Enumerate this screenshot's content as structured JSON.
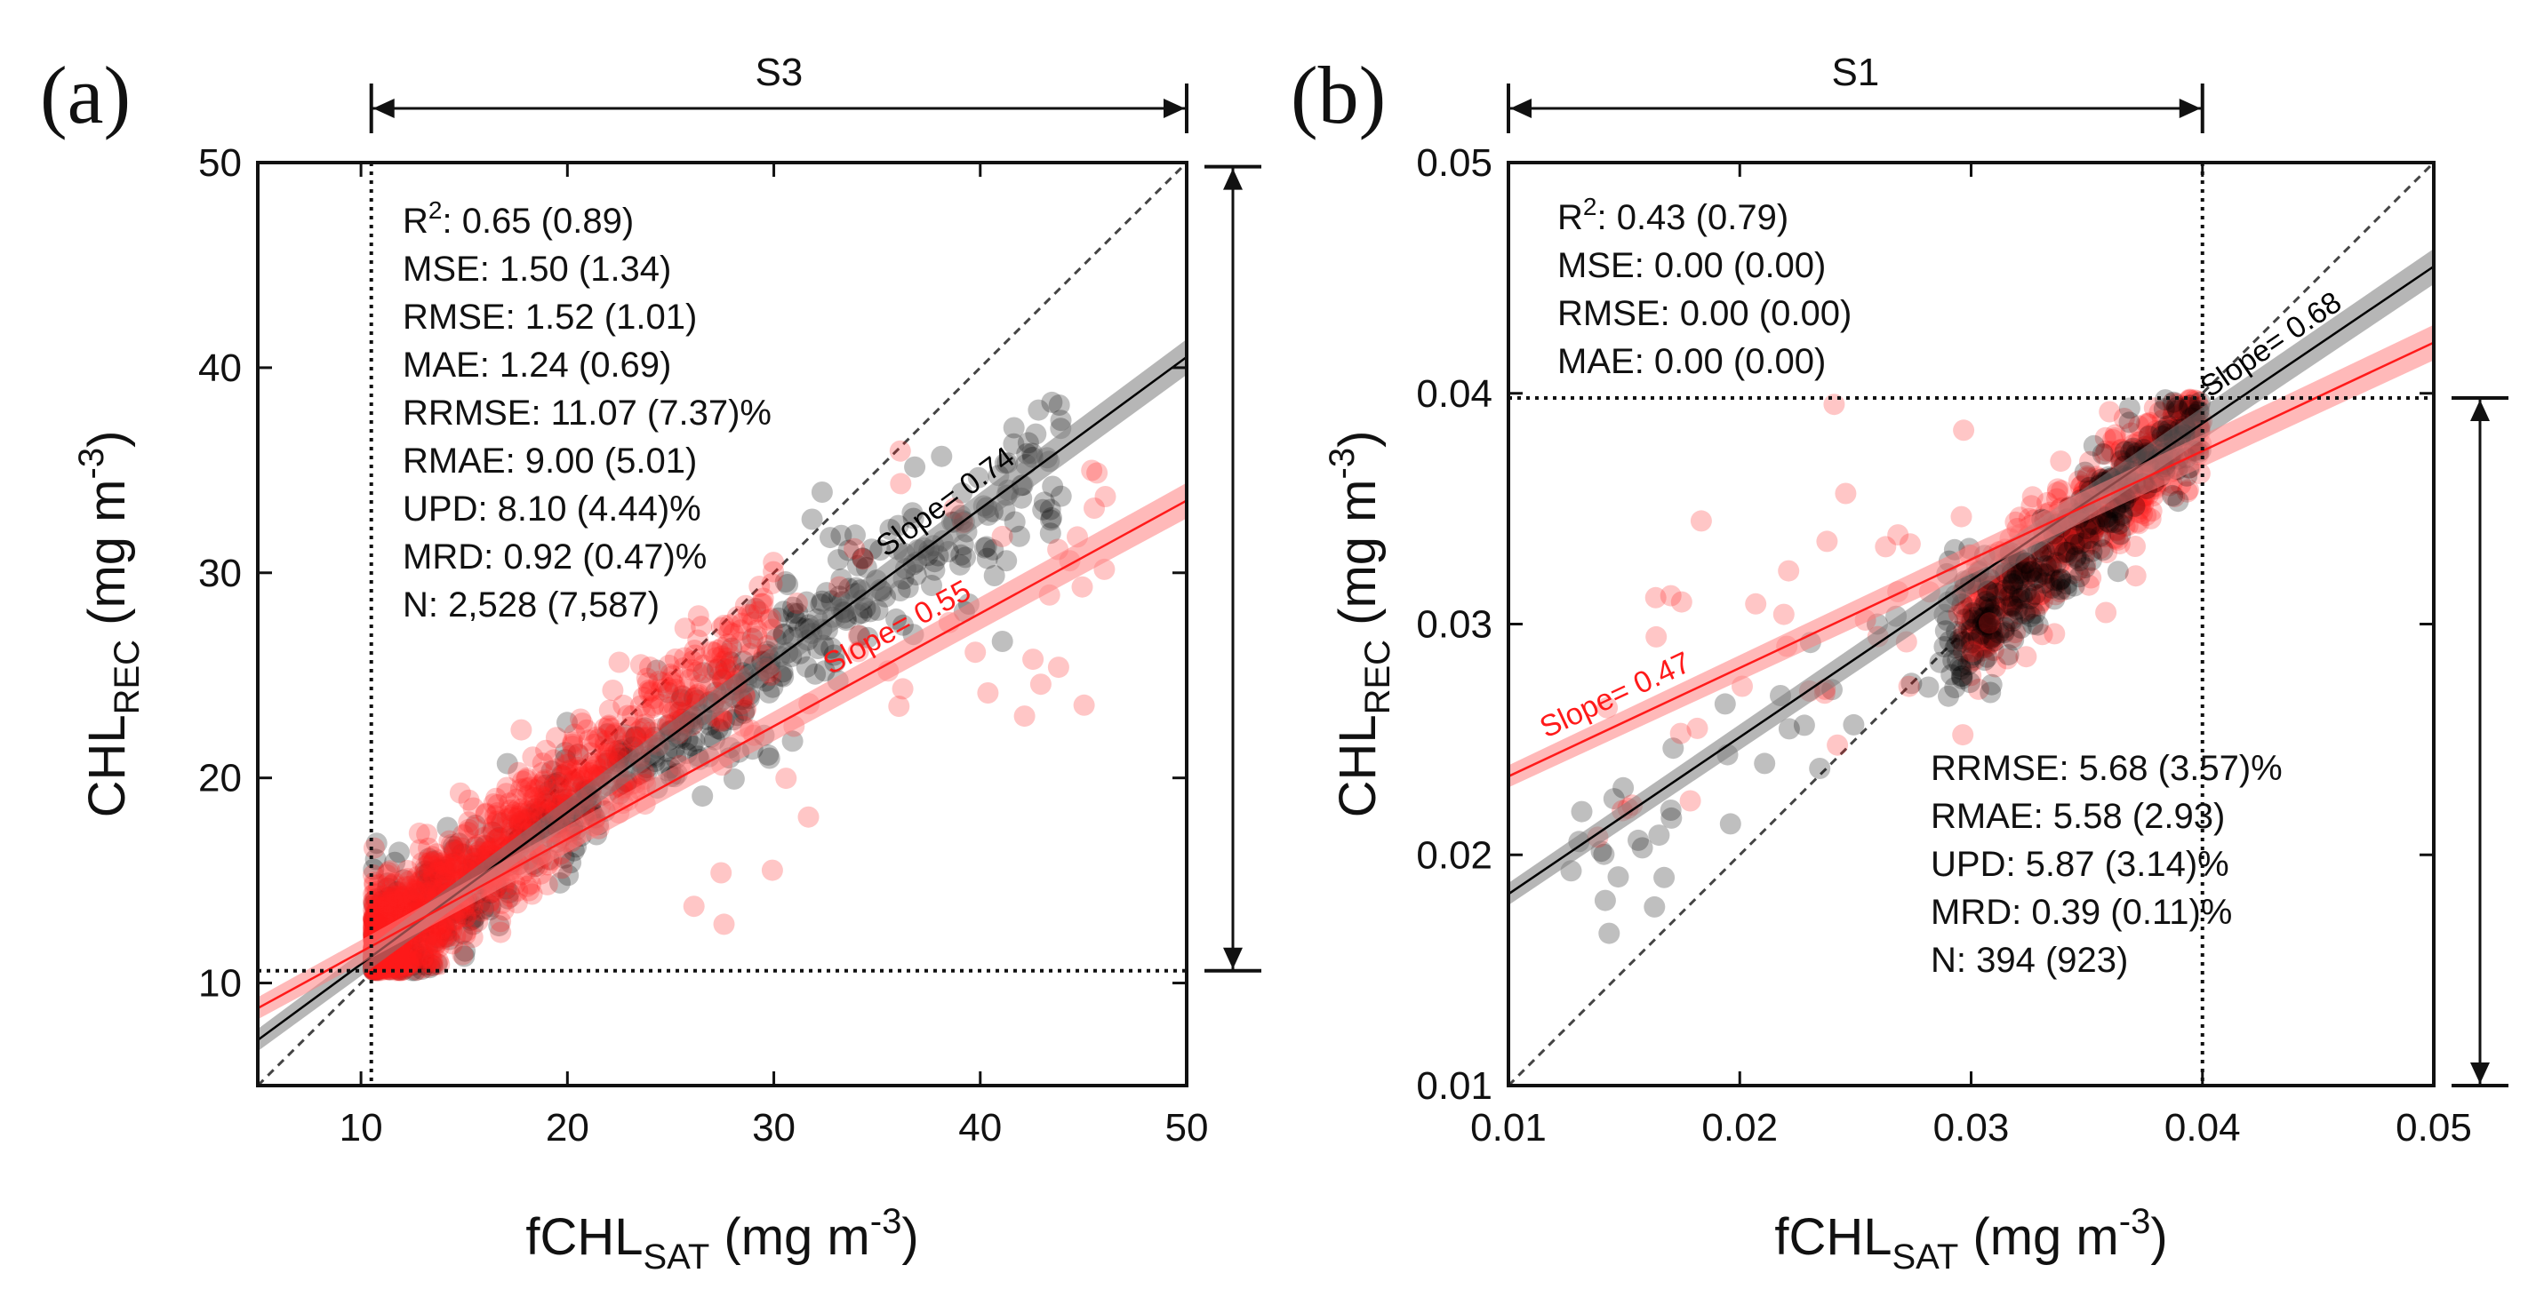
{
  "chart_data": [
    {
      "panel_label": "(a)",
      "type": "scatter",
      "range_label": "S3",
      "xlabel": {
        "main": "fCHL",
        "sub": "SAT",
        "unit": " (mg m",
        "exp": "-3",
        "close": ")"
      },
      "ylabel": {
        "main": "CHL",
        "sub": "REC",
        "unit": " (mg m",
        "exp": "-3",
        "close": ")"
      },
      "xlim": [
        5,
        50
      ],
      "ylim": [
        5,
        50
      ],
      "xticks": [
        10,
        20,
        30,
        40,
        50
      ],
      "yticks": [
        10,
        20,
        30,
        40,
        50
      ],
      "tick_decimals": 0,
      "range_x": [
        10.5,
        50
      ],
      "range_y": [
        10.6,
        49.8
      ],
      "stats": [
        {
          "label": "R",
          "sup": "2",
          "value": ": 0.65 (0.89)"
        },
        {
          "label": "MSE",
          "sup": "",
          "value": ": 1.50 (1.34)"
        },
        {
          "label": "RMSE",
          "sup": "",
          "value": ": 1.52 (1.01)"
        },
        {
          "label": "MAE",
          "sup": "",
          "value": ": 1.24 (0.69)"
        },
        {
          "label": "RRMSE",
          "sup": "",
          "value": ": 11.07 (7.37)%"
        },
        {
          "label": "RMAE",
          "sup": "",
          "value": ": 9.00 (5.01)"
        },
        {
          "label": "UPD",
          "sup": "",
          "value": ": 8.10 (4.44)%"
        },
        {
          "label": "MRD",
          "sup": "",
          "value": ": 0.92 (0.47)%"
        },
        {
          "label": "N",
          "sup": "",
          "value": ": 2,528 (7,587)"
        }
      ],
      "fits": [
        {
          "name": "black",
          "color": "#000000",
          "band": "#7a7a7a",
          "intercept": 3.52,
          "slope": 0.74,
          "label": "Slope= 0.74",
          "label_x": 38.6
        },
        {
          "name": "red",
          "color": "#ff1a1a",
          "band": "#ff8080",
          "intercept": 6.02,
          "slope": 0.55,
          "label": "Slope= 0.55",
          "label_x": 36.2
        }
      ],
      "clusters": [
        {
          "color": "#000000",
          "seed": 11,
          "n": 620,
          "xmin": 10.6,
          "xmax": 44,
          "fit": [
            3.52,
            0.74
          ],
          "sd": 1.5,
          "skew": 2.0
        },
        {
          "color": "#000000",
          "seed": 12,
          "n": 40,
          "xmin": 28,
          "xmax": 44,
          "fit": [
            3.52,
            0.74
          ],
          "sd": 4.0,
          "skew": 1.0
        },
        {
          "color": "#ff1a1a",
          "seed": 21,
          "n": 1200,
          "xmin": 10.6,
          "xmax": 30,
          "fit": [
            2.4,
            0.84
          ],
          "sd": 1.6,
          "skew": 2.6
        },
        {
          "color": "#ff1a1a",
          "seed": 22,
          "n": 45,
          "xmin": 26,
          "xmax": 47,
          "fit": [
            6.02,
            0.55
          ],
          "sd": 4.5,
          "skew": 1.0
        }
      ]
    },
    {
      "panel_label": "(b)",
      "type": "scatter",
      "range_label": "S1",
      "xlabel": {
        "main": "fCHL",
        "sub": "SAT",
        "unit": " (mg m",
        "exp": "-3",
        "close": ")"
      },
      "ylabel": {
        "main": "CHL",
        "sub": "REC",
        "unit": " (mg m",
        "exp": "-3",
        "close": ")"
      },
      "xlim": [
        0.01,
        0.05
      ],
      "ylim": [
        0.01,
        0.05
      ],
      "xticks": [
        0.01,
        0.02,
        0.03,
        0.04,
        0.05
      ],
      "yticks": [
        0.01,
        0.02,
        0.03,
        0.04,
        0.05
      ],
      "tick_decimals": 2,
      "range_x": [
        0.01,
        0.04
      ],
      "range_y": [
        0.01,
        0.0398
      ],
      "stats": [
        {
          "label": "R",
          "sup": "2",
          "value": ": 0.43 (0.79)"
        },
        {
          "label": "MSE",
          "sup": "",
          "value": ": 0.00 (0.00)"
        },
        {
          "label": "RMSE",
          "sup": "",
          "value": ": 0.00 (0.00)"
        },
        {
          "label": "MAE",
          "sup": "",
          "value": ": 0.00 (0.00)"
        }
      ],
      "stats2": [
        {
          "label": "RRMSE",
          "value": ": 5.68 (3.57)%"
        },
        {
          "label": "RMAE",
          "value": ": 5.58 (2.93)"
        },
        {
          "label": "UPD",
          "value": ": 5.87 (3.14)%"
        },
        {
          "label": "MRD",
          "value": ": 0.39 (0.11)%"
        },
        {
          "label": "N",
          "value": ": 394 (923)"
        }
      ],
      "fits": [
        {
          "name": "black",
          "color": "#000000",
          "band": "#7a7a7a",
          "intercept": 0.0115,
          "slope": 0.68,
          "label": "Slope= 0.68",
          "label_x": 0.0432
        },
        {
          "name": "red",
          "color": "#ff1a1a",
          "band": "#ff8080",
          "intercept": 0.0187,
          "slope": 0.47,
          "label": "Slope= 0.47",
          "label_x": 0.0148
        }
      ],
      "clusters": [
        {
          "color": "#ff1a1a",
          "seed": 31,
          "n": 520,
          "xmin": 0.0295,
          "xmax": 0.04,
          "fit": [
            0.003,
            0.9
          ],
          "sd": 0.0013,
          "skew": 0
        },
        {
          "color": "#000000",
          "seed": 32,
          "n": 260,
          "xmin": 0.029,
          "xmax": 0.04,
          "fit": [
            0.0,
            0.98
          ],
          "sd": 0.0012,
          "skew": 0
        },
        {
          "color": "#000000",
          "seed": 33,
          "n": 45,
          "xmin": 0.012,
          "xmax": 0.031,
          "fit": [
            0.009,
            0.74
          ],
          "sd": 0.0017,
          "skew": 0
        },
        {
          "color": "#ff1a1a",
          "seed": 34,
          "n": 40,
          "xmin": 0.013,
          "xmax": 0.031,
          "fit": [
            0.0187,
            0.47
          ],
          "sd": 0.0035,
          "skew": 0
        }
      ]
    }
  ]
}
